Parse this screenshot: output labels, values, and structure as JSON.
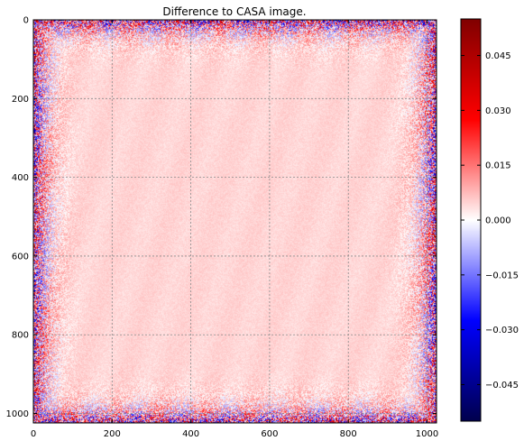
{
  "chart_data": {
    "type": "heatmap",
    "title": "Difference to CASA image.",
    "xlabel": "",
    "ylabel": "",
    "image_size": [
      1024,
      1024
    ],
    "xlim": [
      0,
      1024
    ],
    "ylim": [
      1024,
      0
    ],
    "x_ticks": [
      0,
      200,
      400,
      600,
      800,
      1000
    ],
    "x_tick_labels": [
      "0",
      "200",
      "400",
      "600",
      "800",
      "1000"
    ],
    "y_ticks": [
      0,
      200,
      400,
      600,
      800,
      1000
    ],
    "y_tick_labels": [
      "0",
      "200",
      "400",
      "600",
      "800",
      "1000"
    ],
    "grid": true,
    "colormap": "seismic",
    "colormap_colors": [
      "#00004d",
      "#0000ff",
      "#ffffff",
      "#ff0000",
      "#800000"
    ],
    "value_range": [
      -0.055,
      0.055
    ],
    "colorbar": {
      "location": "right",
      "ticks": [
        0.045,
        0.03,
        0.015,
        0.0,
        -0.015,
        -0.03,
        -0.045
      ],
      "tick_labels": [
        "0.045",
        "0.030",
        "0.015",
        "0.000",
        "−0.015",
        "−0.030",
        "−0.045"
      ]
    },
    "pattern": {
      "center_value": 0.004,
      "center_spread": 0.003,
      "edge_value": 0.0,
      "edge_spread": 0.028,
      "edge_red_bias": 0.015
    }
  }
}
